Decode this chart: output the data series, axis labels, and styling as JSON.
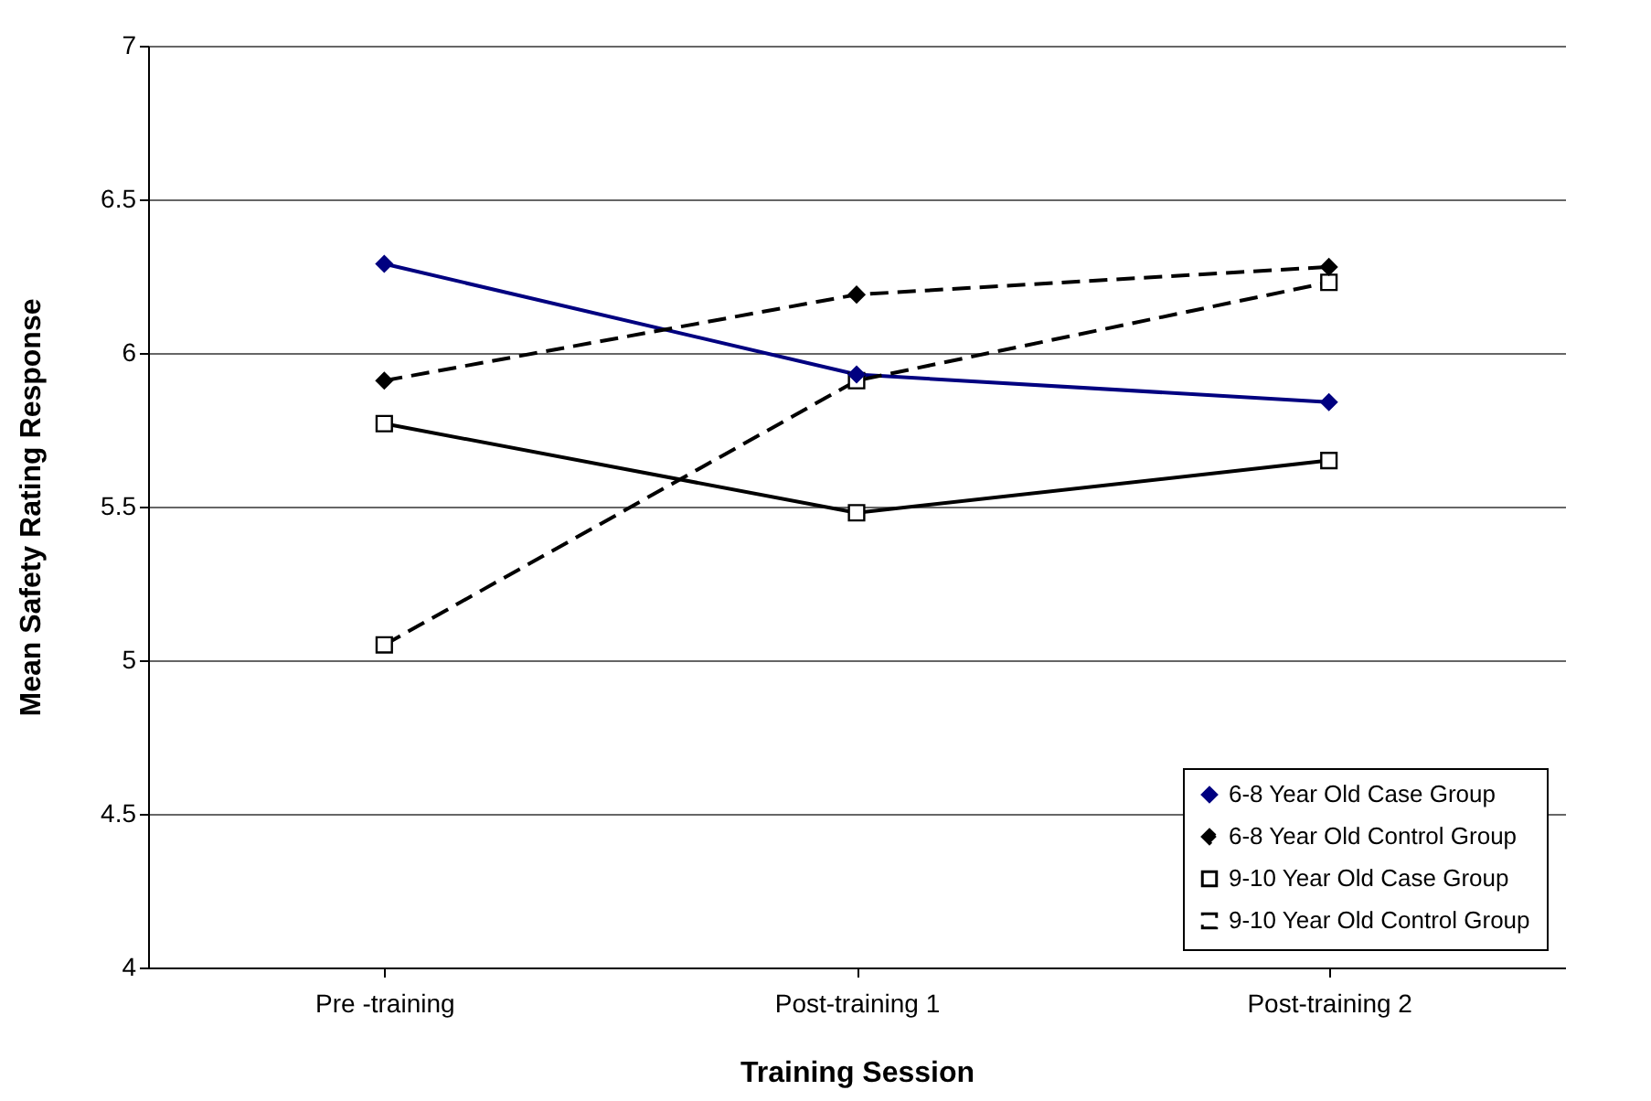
{
  "chart_data": {
    "type": "line",
    "xlabel": "Training Session",
    "ylabel": "Mean Safety Rating Response",
    "categories": [
      "Pre -training",
      "Post-training 1",
      "Post-training 2"
    ],
    "series": [
      {
        "name": "6-8 Year Old Case Group",
        "color": "#000080",
        "values": [
          6.29,
          5.93,
          5.84
        ],
        "marker": "diamond",
        "line_style": "solid"
      },
      {
        "name": "6-8 Year Old Control Group",
        "color": "#000000",
        "values": [
          5.91,
          6.19,
          6.28
        ],
        "marker": "diamond",
        "line_style": "dashed"
      },
      {
        "name": "9-10 Year Old Case Group",
        "color": "#000000",
        "values": [
          5.77,
          5.48,
          5.65
        ],
        "marker": "square",
        "line_style": "solid"
      },
      {
        "name": "9-10 Year Old Control Group",
        "color": "#000000",
        "values": [
          5.05,
          5.91,
          6.23
        ],
        "marker": "square",
        "line_style": "dashed"
      }
    ],
    "ylim": [
      4,
      7
    ],
    "yticks": [
      4,
      4.5,
      5,
      5.5,
      6,
      6.5,
      7
    ],
    "grid": "y",
    "legend": "bottom right"
  }
}
